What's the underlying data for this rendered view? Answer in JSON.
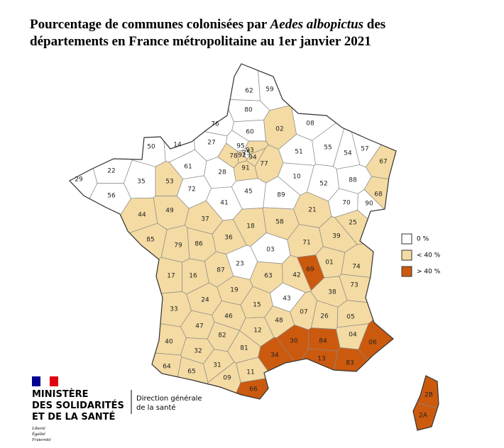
{
  "title": {
    "line1": "Pourcentage de communes colonisées par ",
    "line1_italic": "Aedes albopictus",
    "line1_end": " des",
    "line2": "départements en France métropolitaine au 1er janvier 2021"
  },
  "legend": [
    {
      "label": "0 %",
      "color": "#ffffff"
    },
    {
      "label": "< 40 %",
      "color": "#f4dba3"
    },
    {
      "label": "> 40 %",
      "color": "#cc5a0e"
    }
  ],
  "departments": [
    {
      "code": "62",
      "color": "#ffffff"
    },
    {
      "code": "59",
      "color": "#ffffff"
    },
    {
      "code": "80",
      "color": "#ffffff"
    },
    {
      "code": "76",
      "color": "#ffffff"
    },
    {
      "code": "02",
      "color": "#f4dba3"
    },
    {
      "code": "08",
      "color": "#ffffff"
    },
    {
      "code": "60",
      "color": "#ffffff"
    },
    {
      "code": "50",
      "color": "#ffffff"
    },
    {
      "code": "14",
      "color": "#ffffff"
    },
    {
      "code": "27",
      "color": "#ffffff"
    },
    {
      "code": "95",
      "color": "#ffffff"
    },
    {
      "code": "78",
      "color": "#f4dba3"
    },
    {
      "code": "92",
      "color": "#f4dba3"
    },
    {
      "code": "93",
      "color": "#f4dba3"
    },
    {
      "code": "94",
      "color": "#f4dba3"
    },
    {
      "code": "75",
      "color": "#ffffff"
    },
    {
      "code": "91",
      "color": "#f4dba3"
    },
    {
      "code": "77",
      "color": "#f4dba3"
    },
    {
      "code": "51",
      "color": "#ffffff"
    },
    {
      "code": "55",
      "color": "#ffffff"
    },
    {
      "code": "54",
      "color": "#ffffff"
    },
    {
      "code": "57",
      "color": "#ffffff"
    },
    {
      "code": "67",
      "color": "#f4dba3"
    },
    {
      "code": "29",
      "color": "#ffffff"
    },
    {
      "code": "22",
      "color": "#ffffff"
    },
    {
      "code": "35",
      "color": "#ffffff"
    },
    {
      "code": "53",
      "color": "#f4dba3"
    },
    {
      "code": "61",
      "color": "#ffffff"
    },
    {
      "code": "28",
      "color": "#ffffff"
    },
    {
      "code": "72",
      "color": "#ffffff"
    },
    {
      "code": "10",
      "color": "#ffffff"
    },
    {
      "code": "52",
      "color": "#ffffff"
    },
    {
      "code": "88",
      "color": "#ffffff"
    },
    {
      "code": "68",
      "color": "#f4dba3"
    },
    {
      "code": "56",
      "color": "#ffffff"
    },
    {
      "code": "45",
      "color": "#ffffff"
    },
    {
      "code": "89",
      "color": "#ffffff"
    },
    {
      "code": "41",
      "color": "#ffffff"
    },
    {
      "code": "70",
      "color": "#ffffff"
    },
    {
      "code": "90",
      "color": "#ffffff"
    },
    {
      "code": "44",
      "color": "#f4dba3"
    },
    {
      "code": "49",
      "color": "#f4dba3"
    },
    {
      "code": "37",
      "color": "#f4dba3"
    },
    {
      "code": "18",
      "color": "#f4dba3"
    },
    {
      "code": "58",
      "color": "#f4dba3"
    },
    {
      "code": "21",
      "color": "#f4dba3"
    },
    {
      "code": "25",
      "color": "#f4dba3"
    },
    {
      "code": "36",
      "color": "#f4dba3"
    },
    {
      "code": "39",
      "color": "#f4dba3"
    },
    {
      "code": "85",
      "color": "#f4dba3"
    },
    {
      "code": "79",
      "color": "#f4dba3"
    },
    {
      "code": "86",
      "color": "#f4dba3"
    },
    {
      "code": "71",
      "color": "#f4dba3"
    },
    {
      "code": "03",
      "color": "#ffffff"
    },
    {
      "code": "01",
      "color": "#f4dba3"
    },
    {
      "code": "74",
      "color": "#f4dba3"
    },
    {
      "code": "23",
      "color": "#ffffff"
    },
    {
      "code": "87",
      "color": "#f4dba3"
    },
    {
      "code": "17",
      "color": "#f4dba3"
    },
    {
      "code": "16",
      "color": "#f4dba3"
    },
    {
      "code": "63",
      "color": "#f4dba3"
    },
    {
      "code": "42",
      "color": "#f4dba3"
    },
    {
      "code": "69",
      "color": "#cc5a0e"
    },
    {
      "code": "73",
      "color": "#f4dba3"
    },
    {
      "code": "19",
      "color": "#f4dba3"
    },
    {
      "code": "38",
      "color": "#f4dba3"
    },
    {
      "code": "24",
      "color": "#f4dba3"
    },
    {
      "code": "43",
      "color": "#ffffff"
    },
    {
      "code": "33",
      "color": "#f4dba3"
    },
    {
      "code": "15",
      "color": "#f4dba3"
    },
    {
      "code": "07",
      "color": "#f4dba3"
    },
    {
      "code": "26",
      "color": "#f4dba3"
    },
    {
      "code": "05",
      "color": "#f4dba3"
    },
    {
      "code": "46",
      "color": "#f4dba3"
    },
    {
      "code": "48",
      "color": "#f4dba3"
    },
    {
      "code": "47",
      "color": "#f4dba3"
    },
    {
      "code": "12",
      "color": "#f4dba3"
    },
    {
      "code": "04",
      "color": "#f4dba3"
    },
    {
      "code": "06",
      "color": "#cc5a0e"
    },
    {
      "code": "82",
      "color": "#f4dba3"
    },
    {
      "code": "30",
      "color": "#cc5a0e"
    },
    {
      "code": "84",
      "color": "#cc5a0e"
    },
    {
      "code": "40",
      "color": "#f4dba3"
    },
    {
      "code": "81",
      "color": "#f4dba3"
    },
    {
      "code": "32",
      "color": "#f4dba3"
    },
    {
      "code": "13",
      "color": "#cc5a0e"
    },
    {
      "code": "83",
      "color": "#cc5a0e"
    },
    {
      "code": "34",
      "color": "#cc5a0e"
    },
    {
      "code": "64",
      "color": "#f4dba3"
    },
    {
      "code": "65",
      "color": "#f4dba3"
    },
    {
      "code": "31",
      "color": "#f4dba3"
    },
    {
      "code": "11",
      "color": "#f4dba3"
    },
    {
      "code": "09",
      "color": "#f4dba3"
    },
    {
      "code": "66",
      "color": "#cc5a0e"
    },
    {
      "code": "2B",
      "color": "#cc5a0e"
    },
    {
      "code": "2A",
      "color": "#cc5a0e"
    }
  ],
  "logo": {
    "lines": [
      "MINISTÈRE",
      "DES SOLIDARITÉS",
      "ET DE LA SANTÉ"
    ],
    "motto": [
      "Liberté",
      "Égalité",
      "Fraternité"
    ],
    "direction": [
      "Direction générale",
      "de la santé"
    ]
  }
}
